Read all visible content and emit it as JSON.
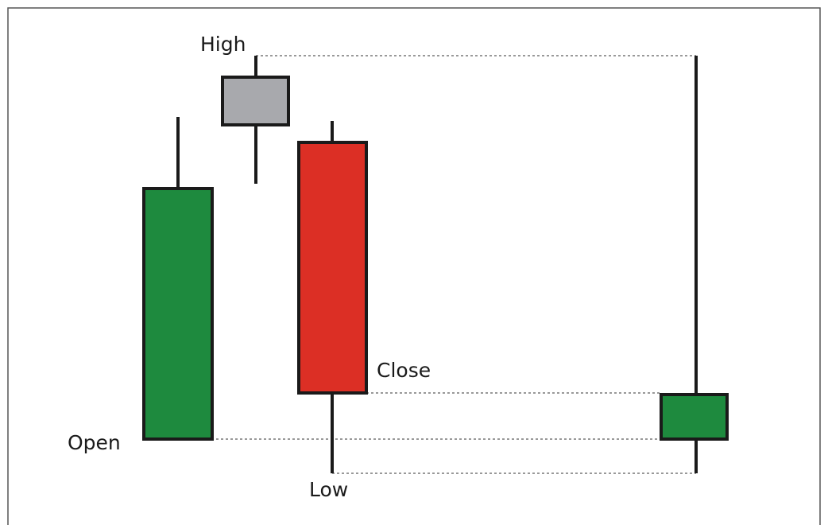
{
  "labels": {
    "high": "High",
    "close": "Close",
    "open": "Open",
    "low": "Low"
  },
  "colors": {
    "bullish": "#1e8a3e",
    "bearish": "#dc2f25",
    "neutral": "#a8a9ad",
    "outline": "#1a1a1a"
  },
  "candles": [
    {
      "name": "green-candle-left",
      "color_role": "bullish"
    },
    {
      "name": "gray-candle",
      "color_role": "neutral"
    },
    {
      "name": "red-candle",
      "color_role": "bearish"
    },
    {
      "name": "green-candle-right",
      "color_role": "bullish"
    }
  ]
}
